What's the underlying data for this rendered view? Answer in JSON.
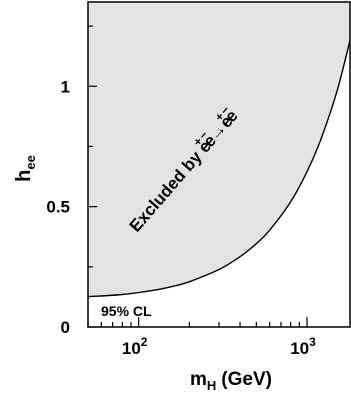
{
  "chart_data": {
    "type": "area",
    "xscale": "log",
    "xlim": [
      50,
      1800
    ],
    "ylim": [
      0,
      1.35
    ],
    "xlabel": {
      "main": "m",
      "sub": "H",
      "unit": "(GeV)"
    },
    "ylabel": {
      "main": "h",
      "sub": "ee"
    },
    "x_ticks": [
      {
        "value": 100,
        "base": "10",
        "exp": "2"
      },
      {
        "value": 1000,
        "base": "10",
        "exp": "3"
      }
    ],
    "y_ticks": [
      {
        "value": 0,
        "label": "0"
      },
      {
        "value": 0.5,
        "label": "0.5"
      },
      {
        "value": 1,
        "label": "1"
      }
    ],
    "exclusion_curve": {
      "x": [
        50,
        80,
        120,
        160,
        200,
        300,
        400,
        500,
        600,
        800,
        1000,
        1200,
        1500,
        1800
      ],
      "y": [
        0.126,
        0.135,
        0.151,
        0.169,
        0.188,
        0.239,
        0.292,
        0.346,
        0.402,
        0.52,
        0.645,
        0.774,
        0.975,
        1.19
      ]
    },
    "region_label": {
      "text": "Excluded by ",
      "r1": "e",
      "r2": "e",
      "arrow": "→",
      "p1": "e",
      "p2": "e",
      "plus": "+",
      "minus": "−"
    },
    "cl_label": "95% CL",
    "fill_color": "#e3e3e3",
    "line_color": "#000000"
  }
}
